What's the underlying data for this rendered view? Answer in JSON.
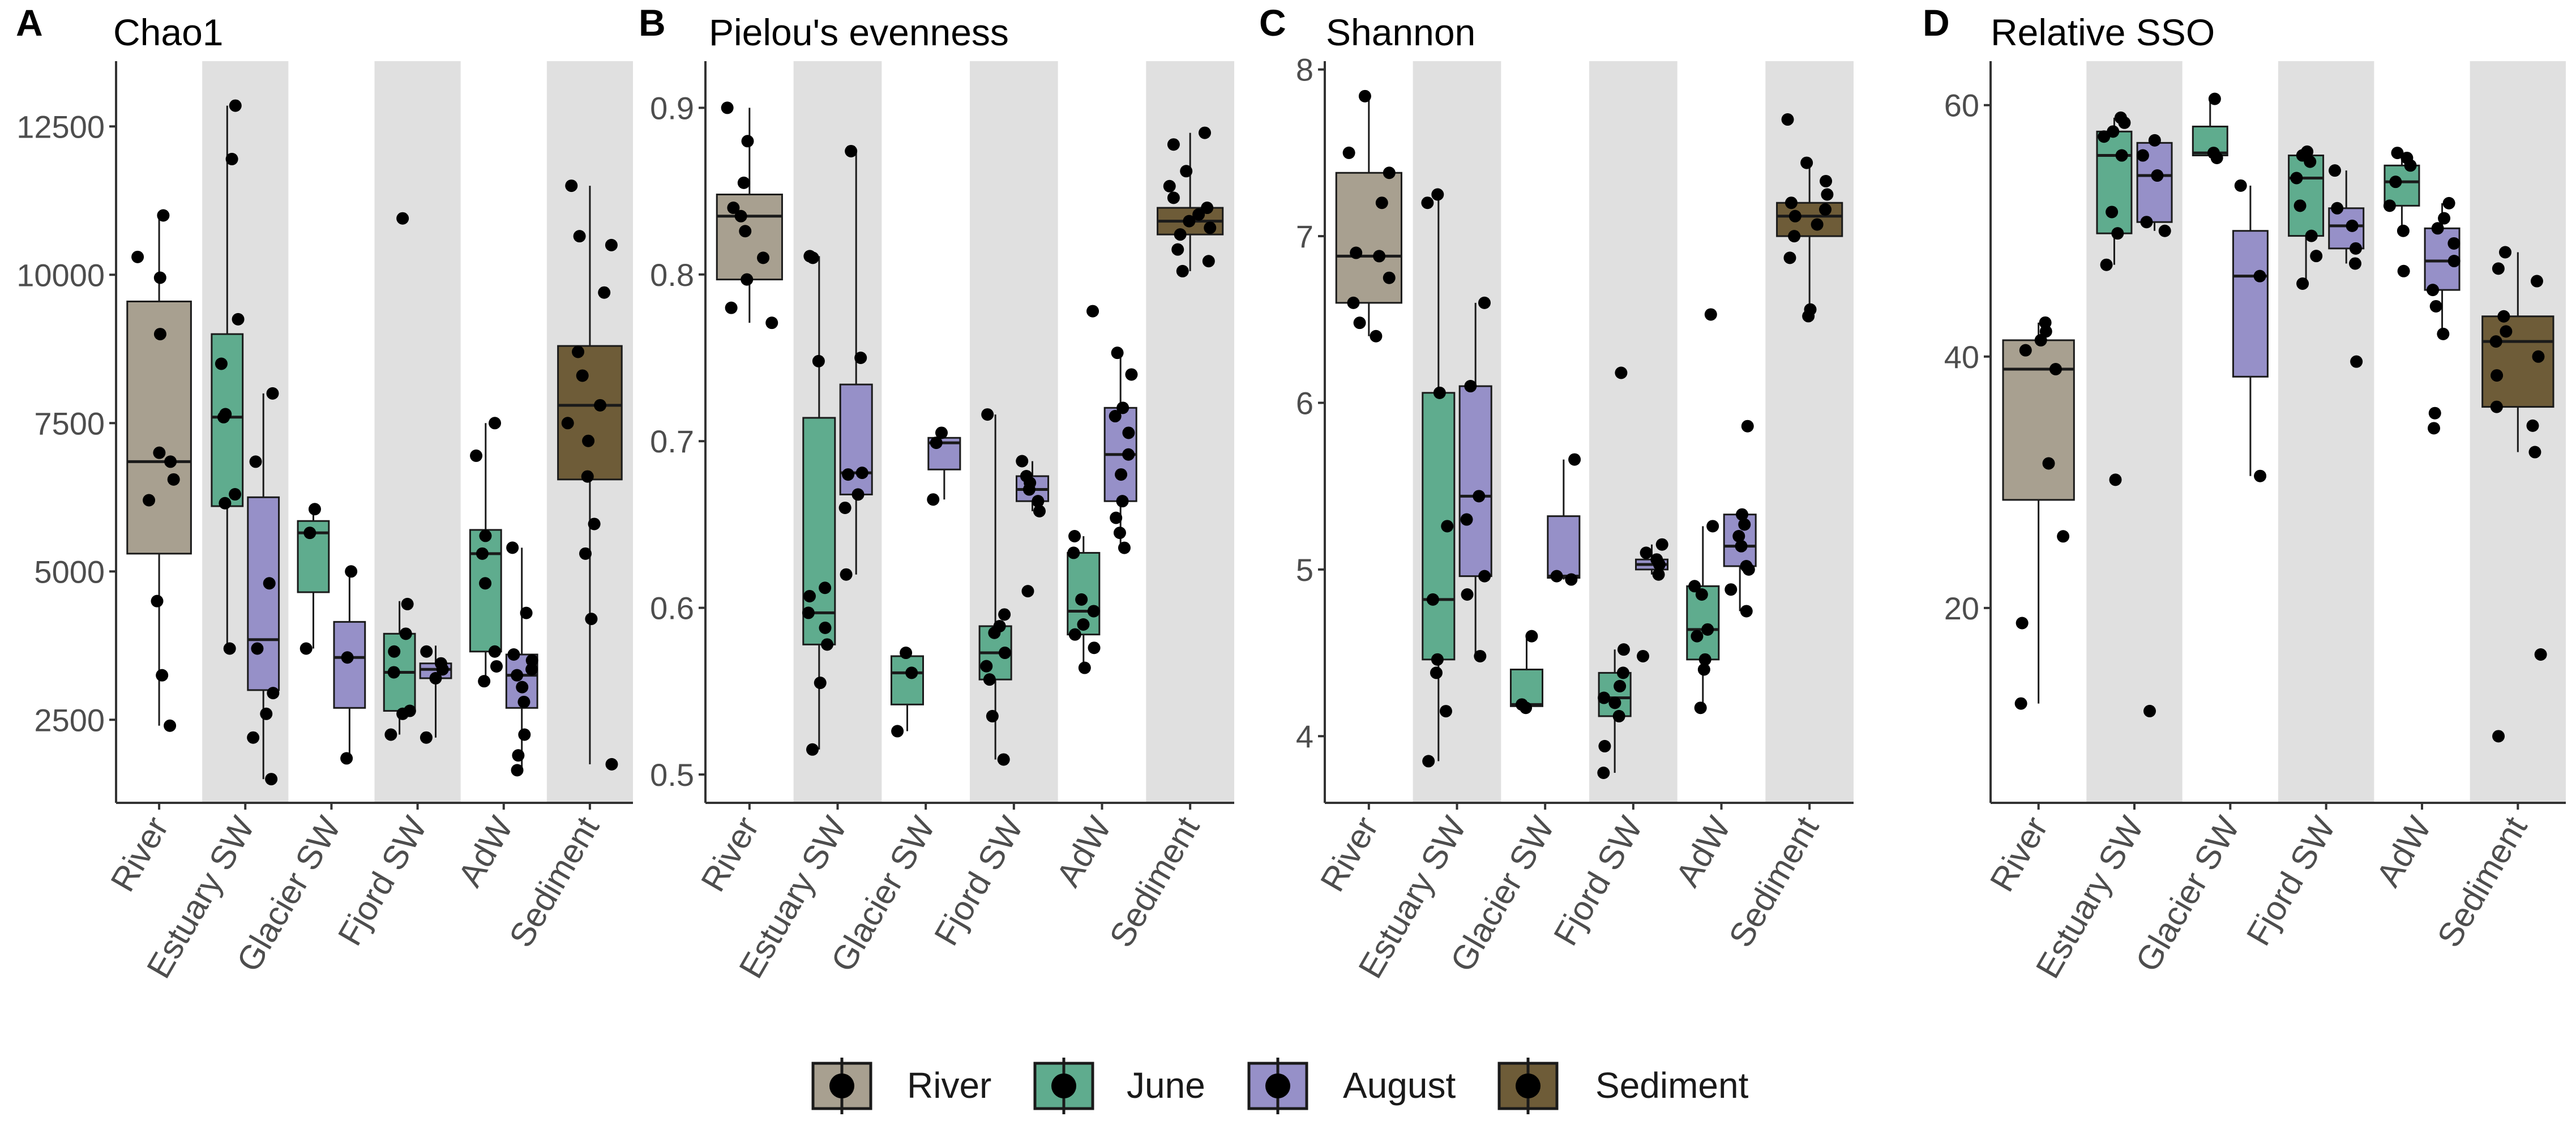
{
  "figure": {
    "legend": [
      {
        "label": "River",
        "color": "#a8a090"
      },
      {
        "label": "June",
        "color": "#5fac8e"
      },
      {
        "label": "August",
        "color": "#9690c8"
      },
      {
        "label": "Sediment",
        "color": "#6e5c38"
      }
    ],
    "colors": {
      "shade": "#e0e0e0",
      "point": "#000000",
      "line": "#1a1a1a"
    }
  },
  "chart_data": [
    {
      "type": "box",
      "panel_letter": "A",
      "title": "Chao1",
      "xlabel": "",
      "ylabel": "",
      "categories": [
        "River",
        "Estuary SW",
        "Glacier SW",
        "Fjord SW",
        "AdW",
        "Sediment"
      ],
      "shaded": [
        1,
        3,
        5
      ],
      "ylim": [
        1100,
        13600
      ],
      "yticks": [
        2500,
        5000,
        7500,
        10000,
        12500
      ],
      "yticklabels": [
        "2500",
        "5000",
        "7500",
        "10000",
        "12500"
      ],
      "boxes": [
        {
          "cat": 0,
          "group": "River",
          "offset": 0,
          "q1": 5300,
          "median": 6850,
          "q3": 9550,
          "whisker_low": 2400,
          "whisker_high": 11000,
          "points": [
            2400,
            3250,
            4500,
            6200,
            6550,
            6850,
            7000,
            9000,
            9950,
            10300,
            11000
          ]
        },
        {
          "cat": 1,
          "group": "June",
          "offset": -0.21,
          "q1": 6100,
          "median": 7600,
          "q3": 9000,
          "whisker_low": 3700,
          "whisker_high": 12850,
          "points": [
            3700,
            6150,
            6300,
            7600,
            7650,
            8500,
            9250,
            11950,
            12850
          ]
        },
        {
          "cat": 1,
          "group": "August",
          "offset": 0.21,
          "q1": 3000,
          "median": 3850,
          "q3": 6250,
          "whisker_low": 1500,
          "whisker_high": 8000,
          "points": [
            1500,
            2200,
            2600,
            2950,
            3700,
            4800,
            6850,
            8000
          ]
        },
        {
          "cat": 2,
          "group": "June",
          "offset": -0.21,
          "q1": 4650,
          "median": 5650,
          "q3": 5850,
          "whisker_low": 3700,
          "whisker_high": 6050,
          "points": [
            3700,
            5650,
            6050
          ]
        },
        {
          "cat": 2,
          "group": "August",
          "offset": 0.21,
          "q1": 2700,
          "median": 3550,
          "q3": 4150,
          "whisker_low": 1850,
          "whisker_high": 5000,
          "points": [
            1850,
            3550,
            5000
          ]
        },
        {
          "cat": 3,
          "group": "June",
          "offset": -0.21,
          "q1": 2650,
          "median": 3300,
          "q3": 3950,
          "whisker_low": 2250,
          "whisker_high": 4500,
          "points": [
            2250,
            2600,
            2650,
            3300,
            3650,
            3950,
            4450,
            10950
          ]
        },
        {
          "cat": 3,
          "group": "August",
          "offset": 0.21,
          "q1": 3200,
          "median": 3350,
          "q3": 3450,
          "whisker_low": 2200,
          "whisker_high": 3750,
          "points": [
            2200,
            3200,
            3350,
            3450,
            3650
          ]
        },
        {
          "cat": 4,
          "group": "June",
          "offset": -0.21,
          "q1": 3650,
          "median": 5300,
          "q3": 5700,
          "whisker_low": 3150,
          "whisker_high": 7500,
          "points": [
            3150,
            3400,
            3650,
            4800,
            5300,
            5600,
            6950,
            7500
          ]
        },
        {
          "cat": 4,
          "group": "August",
          "offset": 0.21,
          "q1": 2700,
          "median": 3250,
          "q3": 3600,
          "whisker_low": 1650,
          "whisker_high": 5400,
          "points": [
            1650,
            1900,
            2250,
            2800,
            3050,
            3250,
            3350,
            3500,
            3600,
            4300,
            5400
          ]
        },
        {
          "cat": 5,
          "group": "Sediment",
          "offset": 0,
          "q1": 6550,
          "median": 7800,
          "q3": 8800,
          "whisker_low": 1750,
          "whisker_high": 11500,
          "points": [
            1750,
            4200,
            5300,
            5800,
            6600,
            7200,
            7500,
            7800,
            8300,
            8700,
            9700,
            10500,
            10650,
            11500
          ]
        }
      ]
    },
    {
      "type": "box",
      "panel_letter": "B",
      "title": "Pielou's evenness",
      "xlabel": "",
      "ylabel": "",
      "categories": [
        "River",
        "Estuary SW",
        "Glacier SW",
        "Fjord SW",
        "AdW",
        "Sediment"
      ],
      "shaded": [
        1,
        3,
        5
      ],
      "ylim": [
        0.483,
        0.928
      ],
      "yticks": [
        0.5,
        0.6,
        0.7,
        0.8,
        0.9
      ],
      "yticklabels": [
        "0.5",
        "0.6",
        "0.7",
        "0.8",
        "0.9"
      ],
      "boxes": [
        {
          "cat": 0,
          "group": "River",
          "offset": 0,
          "q1": 0.797,
          "median": 0.835,
          "q3": 0.848,
          "whisker_low": 0.771,
          "whisker_high": 0.9,
          "points": [
            0.771,
            0.78,
            0.797,
            0.81,
            0.826,
            0.835,
            0.84,
            0.855,
            0.88,
            0.9
          ]
        },
        {
          "cat": 1,
          "group": "June",
          "offset": -0.21,
          "q1": 0.578,
          "median": 0.597,
          "q3": 0.714,
          "whisker_low": 0.515,
          "whisker_high": 0.811,
          "points": [
            0.515,
            0.555,
            0.578,
            0.588,
            0.597,
            0.607,
            0.612,
            0.748,
            0.81,
            0.811
          ]
        },
        {
          "cat": 1,
          "group": "August",
          "offset": 0.21,
          "q1": 0.668,
          "median": 0.681,
          "q3": 0.734,
          "whisker_low": 0.62,
          "whisker_high": 0.874,
          "points": [
            0.62,
            0.66,
            0.668,
            0.68,
            0.681,
            0.75,
            0.874
          ]
        },
        {
          "cat": 2,
          "group": "June",
          "offset": -0.21,
          "q1": 0.542,
          "median": 0.561,
          "q3": 0.571,
          "whisker_low": 0.526,
          "whisker_high": 0.573,
          "points": [
            0.526,
            0.561,
            0.573
          ]
        },
        {
          "cat": 2,
          "group": "August",
          "offset": 0.21,
          "q1": 0.683,
          "median": 0.699,
          "q3": 0.702,
          "whisker_low": 0.665,
          "whisker_high": 0.705,
          "points": [
            0.665,
            0.699,
            0.705
          ]
        },
        {
          "cat": 3,
          "group": "June",
          "offset": -0.21,
          "q1": 0.557,
          "median": 0.573,
          "q3": 0.589,
          "whisker_low": 0.509,
          "whisker_high": 0.716,
          "points": [
            0.509,
            0.535,
            0.557,
            0.565,
            0.573,
            0.585,
            0.589,
            0.596,
            0.716
          ]
        },
        {
          "cat": 3,
          "group": "August",
          "offset": 0.21,
          "q1": 0.664,
          "median": 0.671,
          "q3": 0.679,
          "whisker_low": 0.658,
          "whisker_high": 0.688,
          "points": [
            0.61,
            0.658,
            0.664,
            0.671,
            0.675,
            0.679,
            0.688
          ]
        },
        {
          "cat": 4,
          "group": "June",
          "offset": -0.21,
          "q1": 0.584,
          "median": 0.598,
          "q3": 0.633,
          "whisker_low": 0.564,
          "whisker_high": 0.643,
          "points": [
            0.564,
            0.576,
            0.584,
            0.59,
            0.598,
            0.605,
            0.633,
            0.643,
            0.778
          ]
        },
        {
          "cat": 4,
          "group": "August",
          "offset": 0.21,
          "q1": 0.664,
          "median": 0.692,
          "q3": 0.72,
          "whisker_low": 0.636,
          "whisker_high": 0.753,
          "points": [
            0.636,
            0.645,
            0.654,
            0.664,
            0.68,
            0.692,
            0.705,
            0.715,
            0.72,
            0.74,
            0.753
          ]
        },
        {
          "cat": 5,
          "group": "Sediment",
          "offset": 0,
          "q1": 0.824,
          "median": 0.832,
          "q3": 0.84,
          "whisker_low": 0.802,
          "whisker_high": 0.885,
          "points": [
            0.802,
            0.808,
            0.815,
            0.824,
            0.828,
            0.832,
            0.836,
            0.84,
            0.846,
            0.853,
            0.862,
            0.878,
            0.885
          ]
        }
      ]
    },
    {
      "type": "box",
      "panel_letter": "C",
      "title": "Shannon",
      "xlabel": "",
      "ylabel": "",
      "categories": [
        "River",
        "Estuary SW",
        "Glacier SW",
        "Fjord SW",
        "AdW",
        "Sediment"
      ],
      "shaded": [
        1,
        3,
        5
      ],
      "ylim": [
        3.6,
        8.05
      ],
      "yticks": [
        4,
        5,
        6,
        7,
        8
      ],
      "yticklabels": [
        "4",
        "5",
        "6",
        "7",
        "8"
      ],
      "boxes": [
        {
          "cat": 0,
          "group": "River",
          "offset": 0,
          "q1": 6.6,
          "median": 6.88,
          "q3": 7.38,
          "whisker_low": 6.4,
          "whisker_high": 7.84,
          "points": [
            6.4,
            6.48,
            6.6,
            6.75,
            6.88,
            6.9,
            7.2,
            7.38,
            7.5,
            7.84
          ]
        },
        {
          "cat": 1,
          "group": "June",
          "offset": -0.21,
          "q1": 4.46,
          "median": 4.82,
          "q3": 6.06,
          "whisker_low": 3.85,
          "whisker_high": 7.25,
          "points": [
            3.85,
            4.15,
            4.38,
            4.46,
            4.82,
            5.26,
            6.06,
            7.2,
            7.25
          ]
        },
        {
          "cat": 1,
          "group": "August",
          "offset": 0.21,
          "q1": 4.96,
          "median": 5.44,
          "q3": 6.1,
          "whisker_low": 4.48,
          "whisker_high": 6.6,
          "points": [
            4.48,
            4.85,
            4.96,
            5.3,
            5.44,
            6.1,
            6.6
          ]
        },
        {
          "cat": 2,
          "group": "June",
          "offset": -0.21,
          "q1": 4.18,
          "median": 4.19,
          "q3": 4.4,
          "whisker_low": 4.17,
          "whisker_high": 4.6,
          "points": [
            4.17,
            4.19,
            4.6
          ]
        },
        {
          "cat": 2,
          "group": "August",
          "offset": 0.21,
          "q1": 4.95,
          "median": 4.96,
          "q3": 5.32,
          "whisker_low": 4.94,
          "whisker_high": 5.66,
          "points": [
            4.94,
            4.96,
            5.66
          ]
        },
        {
          "cat": 3,
          "group": "June",
          "offset": -0.21,
          "q1": 4.12,
          "median": 4.23,
          "q3": 4.38,
          "whisker_low": 3.78,
          "whisker_high": 4.52,
          "points": [
            3.78,
            3.94,
            4.12,
            4.2,
            4.23,
            4.3,
            4.38,
            4.52,
            6.18
          ]
        },
        {
          "cat": 3,
          "group": "August",
          "offset": 0.21,
          "q1": 5.0,
          "median": 5.03,
          "q3": 5.06,
          "whisker_low": 4.97,
          "whisker_high": 5.15,
          "points": [
            4.48,
            4.97,
            5.03,
            5.06,
            5.1,
            5.15
          ]
        },
        {
          "cat": 4,
          "group": "June",
          "offset": -0.21,
          "q1": 4.46,
          "median": 4.64,
          "q3": 4.9,
          "whisker_low": 4.17,
          "whisker_high": 5.26,
          "points": [
            4.17,
            4.4,
            4.46,
            4.6,
            4.64,
            4.85,
            4.9,
            5.26,
            6.53
          ]
        },
        {
          "cat": 4,
          "group": "August",
          "offset": 0.21,
          "q1": 5.02,
          "median": 5.14,
          "q3": 5.33,
          "whisker_low": 4.75,
          "whisker_high": 5.33,
          "points": [
            4.75,
            4.88,
            5.0,
            5.02,
            5.14,
            5.2,
            5.27,
            5.33,
            5.86
          ]
        },
        {
          "cat": 5,
          "group": "Sediment",
          "offset": 0,
          "q1": 7.0,
          "median": 7.12,
          "q3": 7.2,
          "whisker_low": 6.52,
          "whisker_high": 7.44,
          "points": [
            6.52,
            6.56,
            6.87,
            7.0,
            7.07,
            7.12,
            7.16,
            7.2,
            7.25,
            7.33,
            7.44,
            7.7
          ]
        }
      ]
    },
    {
      "type": "box",
      "panel_letter": "D",
      "title": "Relative SSO",
      "xlabel": "",
      "ylabel": "",
      "categories": [
        "River",
        "Estuary SW",
        "Glacier SW",
        "Fjord SW",
        "AdW",
        "Sediment"
      ],
      "shaded": [
        1,
        3,
        5
      ],
      "ylim": [
        4.5,
        63.5
      ],
      "yticks": [
        20,
        40,
        60
      ],
      "yticklabels": [
        "20",
        "40",
        "60"
      ],
      "boxes": [
        {
          "cat": 0,
          "group": "River",
          "offset": 0,
          "q1": 28.6,
          "median": 39.0,
          "q3": 41.3,
          "whisker_low": 12.4,
          "whisker_high": 42.7,
          "points": [
            12.4,
            18.8,
            25.7,
            31.5,
            39.0,
            40.5,
            41.3,
            42.0,
            42.7
          ]
        },
        {
          "cat": 1,
          "group": "June",
          "offset": -0.21,
          "q1": 49.8,
          "median": 56.0,
          "q3": 57.9,
          "whisker_low": 47.3,
          "whisker_high": 59.0,
          "points": [
            30.2,
            47.3,
            49.8,
            51.5,
            56.0,
            57.5,
            57.9,
            58.6,
            59.0
          ]
        },
        {
          "cat": 1,
          "group": "August",
          "offset": 0.21,
          "q1": 50.7,
          "median": 54.4,
          "q3": 57.0,
          "whisker_low": 50.0,
          "whisker_high": 57.2,
          "points": [
            11.8,
            50.0,
            50.7,
            54.4,
            56.0,
            57.2
          ]
        },
        {
          "cat": 2,
          "group": "June",
          "offset": -0.21,
          "q1": 56.0,
          "median": 56.2,
          "q3": 58.3,
          "whisker_low": 55.8,
          "whisker_high": 60.5,
          "points": [
            55.8,
            56.2,
            60.5
          ]
        },
        {
          "cat": 2,
          "group": "August",
          "offset": 0.21,
          "q1": 38.4,
          "median": 46.4,
          "q3": 50.0,
          "whisker_low": 30.5,
          "whisker_high": 53.6,
          "points": [
            30.5,
            46.4,
            53.6
          ]
        },
        {
          "cat": 3,
          "group": "June",
          "offset": -0.21,
          "q1": 49.6,
          "median": 54.2,
          "q3": 56.0,
          "whisker_low": 45.8,
          "whisker_high": 56.3,
          "points": [
            45.8,
            48.0,
            49.6,
            52.0,
            54.2,
            55.5,
            56.0,
            56.3
          ]
        },
        {
          "cat": 3,
          "group": "August",
          "offset": 0.21,
          "q1": 48.6,
          "median": 50.4,
          "q3": 51.8,
          "whisker_low": 47.4,
          "whisker_high": 54.8,
          "points": [
            39.6,
            47.4,
            48.6,
            50.4,
            51.8,
            54.8
          ]
        },
        {
          "cat": 4,
          "group": "June",
          "offset": -0.21,
          "q1": 52.0,
          "median": 53.9,
          "q3": 55.2,
          "whisker_low": 50.0,
          "whisker_high": 56.2,
          "points": [
            46.8,
            50.0,
            52.0,
            53.9,
            55.2,
            55.8,
            56.2
          ]
        },
        {
          "cat": 4,
          "group": "August",
          "offset": 0.21,
          "q1": 45.3,
          "median": 47.6,
          "q3": 50.2,
          "whisker_low": 41.8,
          "whisker_high": 52.2,
          "points": [
            34.3,
            35.5,
            41.8,
            44.0,
            45.3,
            47.6,
            49.0,
            50.2,
            51.0,
            52.2
          ]
        },
        {
          "cat": 5,
          "group": "Sediment",
          "offset": 0,
          "q1": 36.0,
          "median": 41.2,
          "q3": 43.2,
          "whisker_low": 32.4,
          "whisker_high": 48.3,
          "points": [
            9.8,
            16.3,
            32.4,
            34.5,
            36.0,
            38.5,
            40.0,
            41.2,
            42.0,
            43.2,
            46.0,
            47.0,
            48.3
          ]
        }
      ]
    }
  ]
}
